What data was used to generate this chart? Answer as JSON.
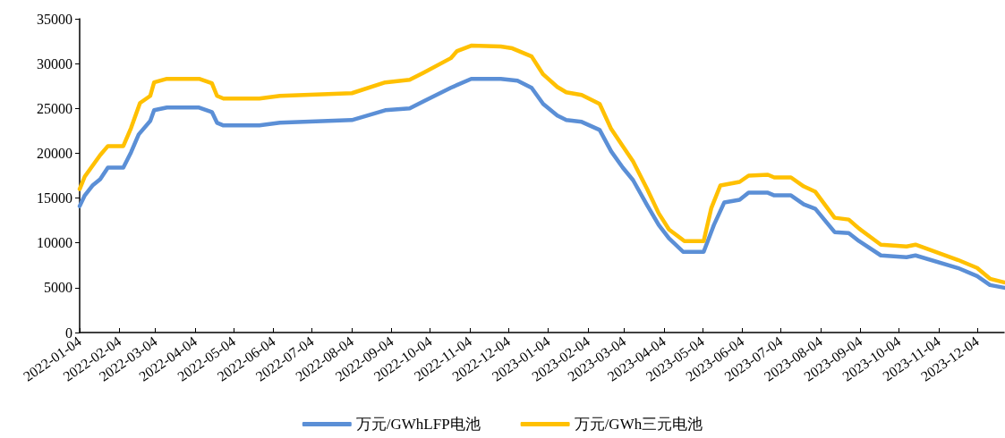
{
  "chart_data": {
    "type": "line",
    "legend": "bottom",
    "grid": false,
    "marker": "none",
    "line_style": "solid",
    "xlim": [
      "2022-01-04",
      "2023-12-25"
    ],
    "xticks": [
      "2022-01-04",
      "2022-02-04",
      "2022-03-04",
      "2022-04-04",
      "2022-05-04",
      "2022-06-04",
      "2022-07-04",
      "2022-08-04",
      "2022-09-04",
      "2022-10-04",
      "2022-11-04",
      "2022-12-04",
      "2023-01-04",
      "2023-02-04",
      "2023-03-04",
      "2023-04-04",
      "2023-05-04",
      "2023-06-04",
      "2023-07-04",
      "2023-08-04",
      "2023-09-04",
      "2023-10-04",
      "2023-11-04",
      "2023-12-04"
    ],
    "ylim": [
      0,
      35000
    ],
    "yticks": [
      0,
      5000,
      10000,
      15000,
      20000,
      25000,
      30000,
      35000
    ],
    "series": [
      {
        "name": "万元/GWhLFP电池",
        "color": "#5b8fd6",
        "x": [
          "2022-01-04",
          "2022-01-08",
          "2022-01-14",
          "2022-01-20",
          "2022-01-26",
          "2022-02-07",
          "2022-02-13",
          "2022-02-19",
          "2022-02-28",
          "2022-03-03",
          "2022-03-13",
          "2022-04-07",
          "2022-04-17",
          "2022-04-21",
          "2022-04-26",
          "2022-05-24",
          "2022-06-09",
          "2022-08-04",
          "2022-08-30",
          "2022-09-18",
          "2022-09-29",
          "2022-10-20",
          "2022-11-05",
          "2022-11-28",
          "2022-12-11",
          "2022-12-22",
          "2022-12-31",
          "2023-01-11",
          "2023-01-18",
          "2023-01-30",
          "2023-02-13",
          "2023-02-22",
          "2023-03-03",
          "2023-03-11",
          "2023-03-22",
          "2023-03-31",
          "2023-04-08",
          "2023-04-19",
          "2023-05-05",
          "2023-05-13",
          "2023-05-21",
          "2023-06-02",
          "2023-06-09",
          "2023-06-24",
          "2023-06-29",
          "2023-07-12",
          "2023-07-22",
          "2023-07-31",
          "2023-08-15",
          "2023-08-26",
          "2023-09-03",
          "2023-09-20",
          "2023-10-10",
          "2023-10-17",
          "2023-11-19",
          "2023-12-04",
          "2023-12-14",
          "2023-12-25"
        ],
        "values": [
          14100,
          15300,
          16400,
          17100,
          18400,
          18400,
          20100,
          22100,
          23600,
          24800,
          25100,
          25100,
          24600,
          23400,
          23100,
          23100,
          23400,
          23700,
          24800,
          25000,
          25800,
          27300,
          28300,
          28300,
          28100,
          27300,
          25500,
          24200,
          23700,
          23500,
          22600,
          20200,
          18400,
          17000,
          14200,
          12000,
          10500,
          9000,
          9000,
          12000,
          14500,
          14800,
          15600,
          15600,
          15300,
          15300,
          14300,
          13800,
          11200,
          11100,
          10200,
          8600,
          8400,
          8600,
          7200,
          6300,
          5300,
          5000
        ]
      },
      {
        "name": "万元/GWh三元电池",
        "color": "#ffc000",
        "x": [
          "2022-01-04",
          "2022-01-08",
          "2022-01-14",
          "2022-01-20",
          "2022-01-26",
          "2022-02-07",
          "2022-02-13",
          "2022-02-20",
          "2022-02-28",
          "2022-03-03",
          "2022-03-13",
          "2022-04-07",
          "2022-04-17",
          "2022-04-21",
          "2022-04-26",
          "2022-05-24",
          "2022-06-09",
          "2022-08-04",
          "2022-08-30",
          "2022-09-18",
          "2022-09-29",
          "2022-10-20",
          "2022-10-25",
          "2022-11-05",
          "2022-11-28",
          "2022-12-07",
          "2022-12-17",
          "2022-12-22",
          "2022-12-31",
          "2023-01-11",
          "2023-01-18",
          "2023-01-30",
          "2023-02-13",
          "2023-02-22",
          "2023-03-03",
          "2023-03-11",
          "2023-03-22",
          "2023-03-31",
          "2023-04-08",
          "2023-04-20",
          "2023-05-05",
          "2023-05-11",
          "2023-05-18",
          "2023-06-02",
          "2023-06-09",
          "2023-06-24",
          "2023-06-29",
          "2023-07-12",
          "2023-07-22",
          "2023-07-31",
          "2023-08-15",
          "2023-08-26",
          "2023-09-03",
          "2023-09-20",
          "2023-10-10",
          "2023-10-17",
          "2023-11-19",
          "2023-12-04",
          "2023-12-14",
          "2023-12-25"
        ],
        "values": [
          16000,
          17400,
          18600,
          19800,
          20800,
          20800,
          22800,
          25600,
          26400,
          27900,
          28300,
          28300,
          27800,
          26400,
          26100,
          26100,
          26400,
          26700,
          27900,
          28200,
          29000,
          30600,
          31400,
          32000,
          31900,
          31700,
          31100,
          30800,
          28800,
          27400,
          26800,
          26500,
          25500,
          22700,
          20800,
          19100,
          16000,
          13300,
          11500,
          10200,
          10200,
          13900,
          16400,
          16800,
          17500,
          17600,
          17300,
          17300,
          16300,
          15700,
          12800,
          12600,
          11600,
          9800,
          9600,
          9800,
          8100,
          7200,
          6000,
          5600
        ]
      }
    ]
  }
}
